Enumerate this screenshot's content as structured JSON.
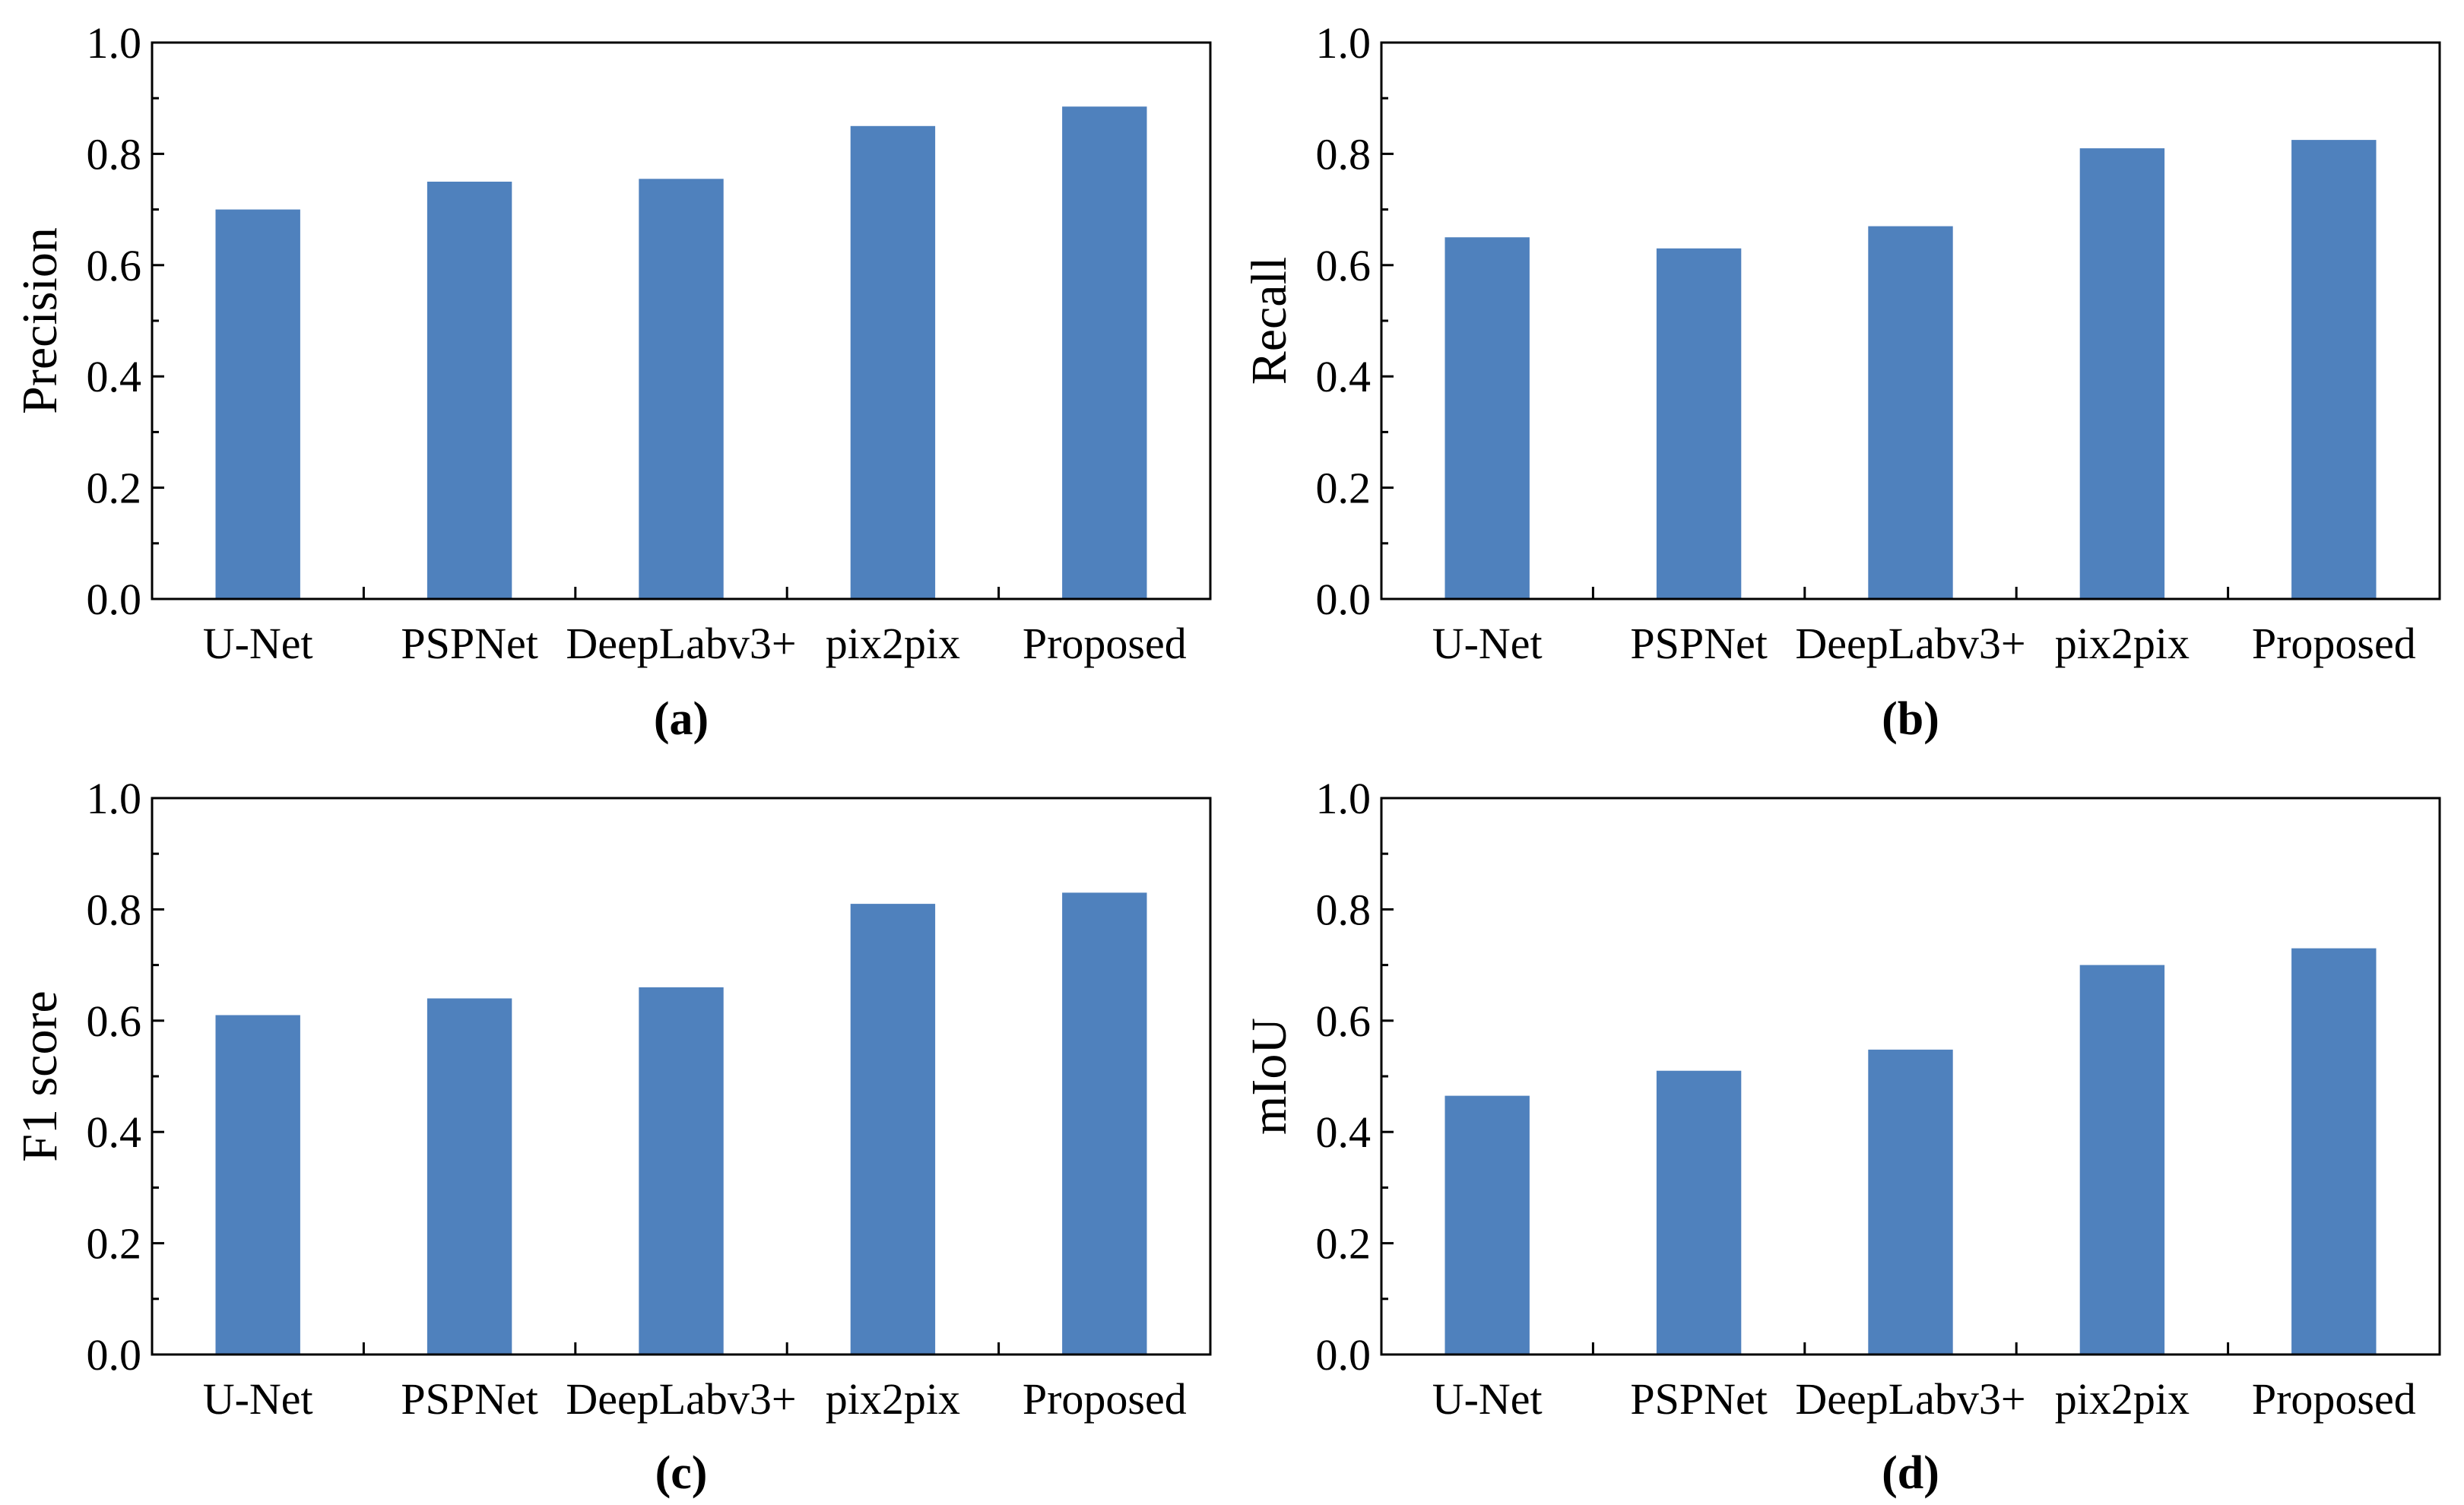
{
  "figure": {
    "bar_color": "#4f81bd",
    "axis_color": "#000000"
  },
  "chart_data": [
    {
      "type": "bar",
      "panel": "(a)",
      "ylabel": "Precision",
      "categories": [
        "U-Net",
        "PSPNet",
        "DeepLabv3+",
        "pix2pix",
        "Proposed"
      ],
      "values": [
        0.7,
        0.75,
        0.755,
        0.85,
        0.885
      ],
      "ylim": [
        0,
        1.0
      ],
      "yticks": [
        "0.0",
        "0.2",
        "0.4",
        "0.6",
        "0.8",
        "1.0"
      ],
      "grid": false
    },
    {
      "type": "bar",
      "panel": "(b)",
      "ylabel": "Recall",
      "categories": [
        "U-Net",
        "PSPNet",
        "DeepLabv3+",
        "pix2pix",
        "Proposed"
      ],
      "values": [
        0.65,
        0.63,
        0.67,
        0.81,
        0.825
      ],
      "ylim": [
        0,
        1.0
      ],
      "yticks": [
        "0.0",
        "0.2",
        "0.4",
        "0.6",
        "0.8",
        "1.0"
      ],
      "grid": false
    },
    {
      "type": "bar",
      "panel": "(c)",
      "ylabel": "F1 score",
      "categories": [
        "U-Net",
        "PSPNet",
        "DeepLabv3+",
        "pix2pix",
        "Proposed"
      ],
      "values": [
        0.61,
        0.64,
        0.66,
        0.81,
        0.83
      ],
      "ylim": [
        0,
        1.0
      ],
      "yticks": [
        "0.0",
        "0.2",
        "0.4",
        "0.6",
        "0.8",
        "1.0"
      ],
      "grid": false
    },
    {
      "type": "bar",
      "panel": "(d)",
      "ylabel": "mIoU",
      "categories": [
        "U-Net",
        "PSPNet",
        "DeepLabv3+",
        "pix2pix",
        "Proposed"
      ],
      "values": [
        0.465,
        0.51,
        0.548,
        0.7,
        0.73
      ],
      "ylim": [
        0,
        1.0
      ],
      "yticks": [
        "0.0",
        "0.2",
        "0.4",
        "0.6",
        "0.8",
        "1.0"
      ],
      "grid": false
    }
  ]
}
